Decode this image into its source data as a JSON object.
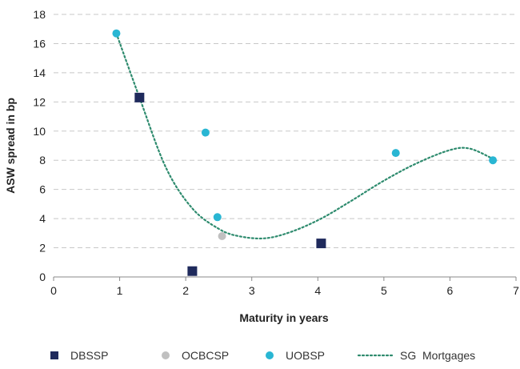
{
  "chart_data": {
    "type": "scatter",
    "title": "",
    "xlabel": "Maturity in years",
    "ylabel": "ASW spread in bp",
    "xlim": [
      0,
      7
    ],
    "ylim": [
      0,
      18
    ],
    "xticks": [
      "0",
      "1",
      "2",
      "3",
      "4",
      "5",
      "6",
      "7"
    ],
    "yticks": [
      "0",
      "2",
      "4",
      "6",
      "8",
      "10",
      "12",
      "14",
      "16",
      "18"
    ],
    "grid": "horizontal dashed",
    "legend_position": "bottom",
    "series": [
      {
        "name": "DBSSP",
        "marker": "square",
        "color": "#1f2a5c",
        "points": [
          {
            "x": 1.3,
            "y": 12.3
          },
          {
            "x": 2.1,
            "y": 0.4
          },
          {
            "x": 4.05,
            "y": 2.3
          }
        ]
      },
      {
        "name": "OCBCSP",
        "marker": "circle",
        "color": "#c0c0c0",
        "points": [
          {
            "x": 2.55,
            "y": 2.8
          }
        ]
      },
      {
        "name": "UOBSP",
        "marker": "circle",
        "color": "#29b6d3",
        "points": [
          {
            "x": 0.95,
            "y": 16.7
          },
          {
            "x": 2.3,
            "y": 9.9
          },
          {
            "x": 2.48,
            "y": 4.1
          },
          {
            "x": 5.18,
            "y": 8.5
          },
          {
            "x": 6.65,
            "y": 8.0
          }
        ]
      },
      {
        "name": "SG  Mortgages",
        "marker": "dotted-line",
        "color": "#2e8b6e",
        "points": [
          {
            "x": 0.95,
            "y": 16.7
          },
          {
            "x": 1.3,
            "y": 12.3
          },
          {
            "x": 1.7,
            "y": 7.5
          },
          {
            "x": 2.1,
            "y": 4.7
          },
          {
            "x": 2.5,
            "y": 3.3
          },
          {
            "x": 2.8,
            "y": 2.8
          },
          {
            "x": 3.2,
            "y": 2.65
          },
          {
            "x": 3.6,
            "y": 3.1
          },
          {
            "x": 4.05,
            "y": 4.0
          },
          {
            "x": 4.5,
            "y": 5.2
          },
          {
            "x": 5.0,
            "y": 6.6
          },
          {
            "x": 5.5,
            "y": 7.8
          },
          {
            "x": 6.0,
            "y": 8.7
          },
          {
            "x": 6.3,
            "y": 8.8
          },
          {
            "x": 6.65,
            "y": 8.1
          }
        ]
      }
    ]
  }
}
